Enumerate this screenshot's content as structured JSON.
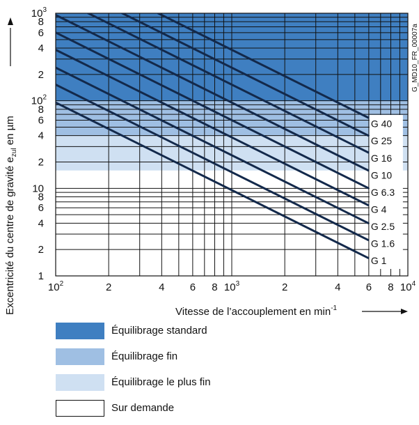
{
  "chart_data": {
    "type": "line",
    "title": "",
    "code_label": "G_MD10_FR_00007a",
    "xlabel": "Vitesse de l’accouplement en min",
    "xlabel_sup": "-1",
    "ylabel_pre": "Excentricité du centre de gravité e",
    "ylabel_sub": "zul",
    "ylabel_post": " en µm",
    "x_scale": "log",
    "y_scale": "log",
    "xlim": [
      100,
      10000
    ],
    "ylim": [
      1,
      1000
    ],
    "grid": true,
    "x_ticks": [
      {
        "value": 100,
        "base": "10",
        "exp": "2"
      },
      {
        "value": 200,
        "base": "2",
        "exp": ""
      },
      {
        "value": 400,
        "base": "4",
        "exp": ""
      },
      {
        "value": 600,
        "base": "6",
        "exp": ""
      },
      {
        "value": 800,
        "base": "8",
        "exp": ""
      },
      {
        "value": 1000,
        "base": "10",
        "exp": "3"
      },
      {
        "value": 2000,
        "base": "2",
        "exp": ""
      },
      {
        "value": 4000,
        "base": "4",
        "exp": ""
      },
      {
        "value": 6000,
        "base": "6",
        "exp": ""
      },
      {
        "value": 8000,
        "base": "8",
        "exp": ""
      },
      {
        "value": 10000,
        "base": "10",
        "exp": "4"
      }
    ],
    "y_ticks": [
      {
        "value": 1,
        "base": "1",
        "exp": ""
      },
      {
        "value": 2,
        "base": "2",
        "exp": ""
      },
      {
        "value": 4,
        "base": "4",
        "exp": ""
      },
      {
        "value": 6,
        "base": "6",
        "exp": ""
      },
      {
        "value": 8,
        "base": "8",
        "exp": ""
      },
      {
        "value": 10,
        "base": "10",
        "exp": ""
      },
      {
        "value": 20,
        "base": "2",
        "exp": ""
      },
      {
        "value": 40,
        "base": "4",
        "exp": ""
      },
      {
        "value": 60,
        "base": "6",
        "exp": ""
      },
      {
        "value": 80,
        "base": "8",
        "exp": ""
      },
      {
        "value": 100,
        "base": "10",
        "exp": "2"
      },
      {
        "value": 200,
        "base": "2",
        "exp": ""
      },
      {
        "value": 400,
        "base": "4",
        "exp": ""
      },
      {
        "value": 600,
        "base": "6",
        "exp": ""
      },
      {
        "value": 800,
        "base": "8",
        "exp": ""
      },
      {
        "value": 1000,
        "base": "10",
        "exp": "3"
      }
    ],
    "regions": [
      {
        "key": "standard",
        "label": "Équilibrage standard",
        "y_from": 100,
        "y_to": 1000,
        "color": "#3f7fc1"
      },
      {
        "key": "fin",
        "label": "Équilibrage fin",
        "y_from": 40,
        "y_to": 100,
        "color": "#9fbfe3"
      },
      {
        "key": "plus_fin",
        "label": "Équilibrage le plus fin",
        "y_from": 16,
        "y_to": 40,
        "color": "#cfe0f2"
      },
      {
        "key": "sur_demande",
        "label": "Sur demande",
        "y_from": 1,
        "y_to": 16,
        "color": "#ffffff"
      }
    ],
    "series": [
      {
        "name": "G 40",
        "grade": 40,
        "x": [
          100,
          6000
        ],
        "y": [
          3820,
          63.7
        ]
      },
      {
        "name": "G 25",
        "grade": 25,
        "x": [
          100,
          6000
        ],
        "y": [
          2390,
          39.8
        ]
      },
      {
        "name": "G 16",
        "grade": 16,
        "x": [
          100,
          6000
        ],
        "y": [
          1530,
          25.5
        ]
      },
      {
        "name": "G 10",
        "grade": 10,
        "x": [
          100,
          6000
        ],
        "y": [
          955,
          15.9
        ]
      },
      {
        "name": "G 6.3",
        "grade": 6.3,
        "x": [
          100,
          6000
        ],
        "y": [
          602,
          10.0
        ]
      },
      {
        "name": "G 4",
        "grade": 4,
        "x": [
          100,
          6000
        ],
        "y": [
          382,
          6.37
        ]
      },
      {
        "name": "G 2.5",
        "grade": 2.5,
        "x": [
          100,
          6000
        ],
        "y": [
          239,
          3.98
        ]
      },
      {
        "name": "G 1.6",
        "grade": 1.6,
        "x": [
          100,
          6000
        ],
        "y": [
          153,
          2.55
        ]
      },
      {
        "name": "G 1",
        "grade": 1,
        "x": [
          100,
          6000
        ],
        "y": [
          95.5,
          1.59
        ]
      }
    ]
  },
  "colors": {
    "line": "#13294b",
    "grid": "#111111"
  }
}
